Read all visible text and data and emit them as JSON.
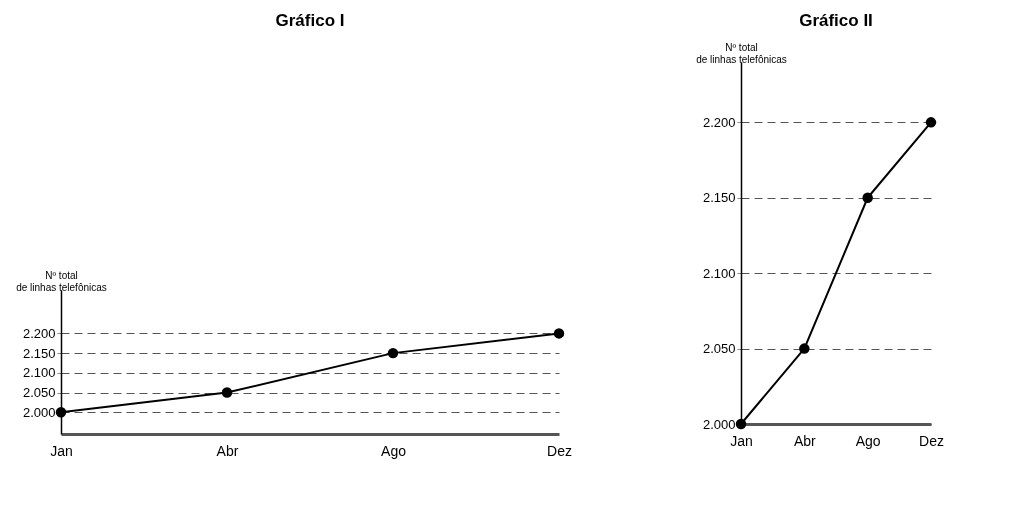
{
  "chart_data": [
    {
      "type": "line",
      "title": "Gráfico  I",
      "ylabel": "Nº total de linhas telefônicas",
      "categories": [
        "Jan",
        "Abr",
        "Ago",
        "Dez"
      ],
      "series": [
        {
          "color": "#000000",
          "values": [
            2000,
            2050,
            2150,
            2200
          ]
        }
      ],
      "ylim": [
        1945,
        2310
      ],
      "yticks": [
        {
          "value": 2000,
          "label": "2.000"
        },
        {
          "value": 2050,
          "label": "2.050"
        },
        {
          "value": 2100,
          "label": "2.100"
        },
        {
          "value": 2150,
          "label": "2.150"
        },
        {
          "value": 2200,
          "label": "2.200"
        }
      ],
      "grid": "y",
      "marker": "circle",
      "line_style": "solid",
      "legend": false
    },
    {
      "type": "line",
      "title": "Gráfico  II",
      "ylabel": "Nº total de linhas telefônicas",
      "categories": [
        "Jan",
        "Abr",
        "Ago",
        "Dez"
      ],
      "series": [
        {
          "color": "#000000",
          "values": [
            2000,
            2050,
            2150,
            2200
          ]
        }
      ],
      "ylim": [
        2000,
        2240
      ],
      "yticks": [
        {
          "value": 2000,
          "label": "2.000"
        },
        {
          "value": 2050,
          "label": "2.050"
        },
        {
          "value": 2100,
          "label": "2.100"
        },
        {
          "value": 2150,
          "label": "2.150"
        },
        {
          "value": 2200,
          "label": "2.200"
        }
      ],
      "grid": "y",
      "marker": "circle",
      "line_style": "solid",
      "legend": false
    }
  ]
}
